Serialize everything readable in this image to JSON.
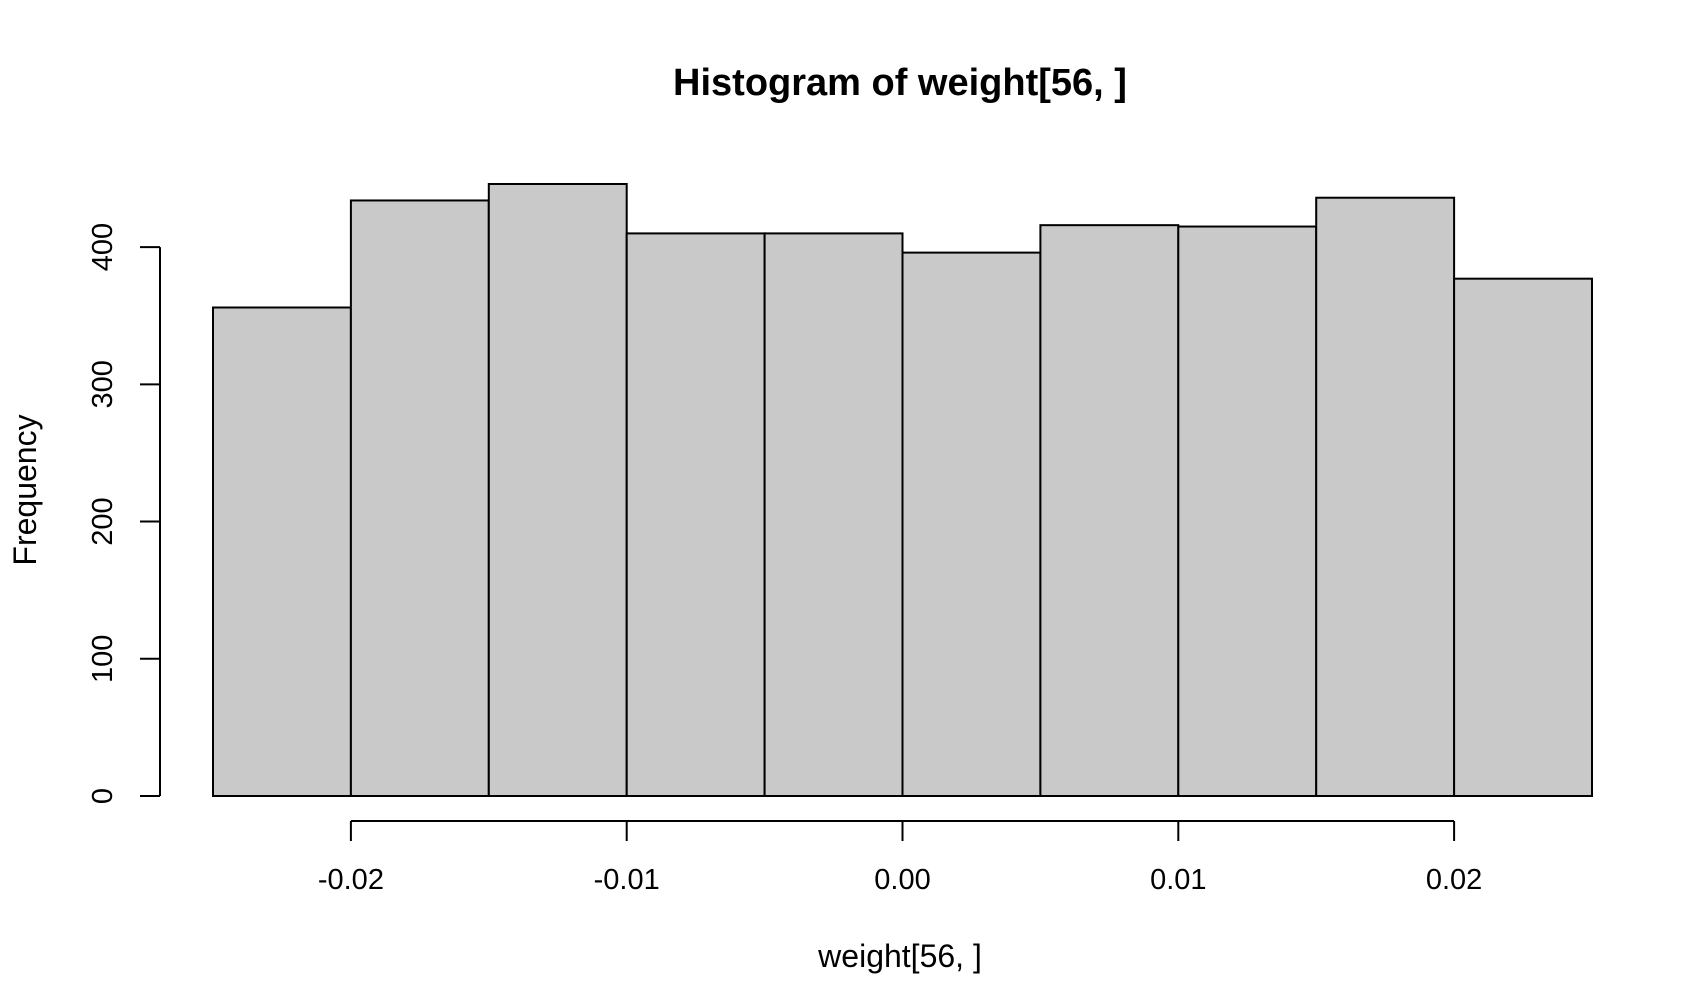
{
  "chart_data": {
    "type": "bar",
    "title": "Histogram of weight[56, ]",
    "xlabel": "weight[56, ]",
    "ylabel": "Frequency",
    "bins": [
      {
        "start": -0.025,
        "end": -0.02,
        "count": 356
      },
      {
        "start": -0.02,
        "end": -0.015,
        "count": 434
      },
      {
        "start": -0.015,
        "end": -0.01,
        "count": 446
      },
      {
        "start": -0.01,
        "end": -0.005,
        "count": 410
      },
      {
        "start": -0.005,
        "end": 0.0,
        "count": 410
      },
      {
        "start": 0.0,
        "end": 0.005,
        "count": 396
      },
      {
        "start": 0.005,
        "end": 0.01,
        "count": 416
      },
      {
        "start": 0.01,
        "end": 0.015,
        "count": 415
      },
      {
        "start": 0.015,
        "end": 0.02,
        "count": 436
      },
      {
        "start": 0.02,
        "end": 0.025,
        "count": 377
      }
    ],
    "xlim": [
      -0.025,
      0.025
    ],
    "ylim": [
      0,
      446
    ],
    "x_ticks": [
      {
        "value": -0.02,
        "label": "-0.02"
      },
      {
        "value": -0.01,
        "label": "-0.01"
      },
      {
        "value": 0.0,
        "label": "0.00"
      },
      {
        "value": 0.01,
        "label": "0.01"
      },
      {
        "value": 0.02,
        "label": "0.02"
      }
    ],
    "y_ticks": [
      {
        "value": 0,
        "label": "0"
      },
      {
        "value": 100,
        "label": "100"
      },
      {
        "value": 200,
        "label": "200"
      },
      {
        "value": 300,
        "label": "300"
      },
      {
        "value": 400,
        "label": "400"
      }
    ],
    "grid": false,
    "bar_color": "#c9c9c9",
    "edge_color": "#000000"
  }
}
